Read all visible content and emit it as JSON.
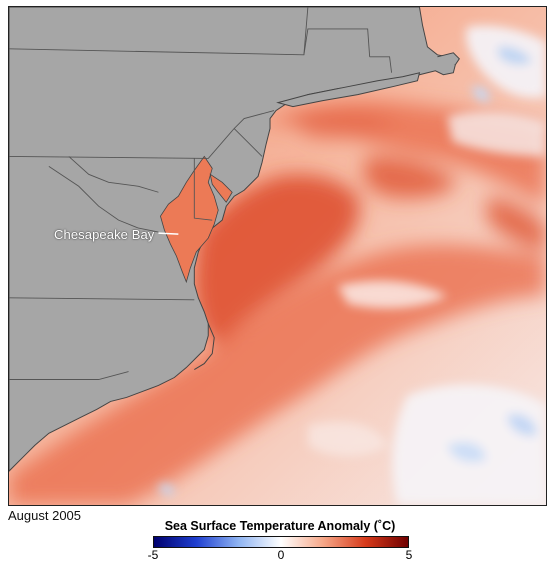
{
  "map": {
    "place_label": "Chesapeake Bay",
    "date": "August 2005",
    "land_color": "#a6a6a6",
    "border_color": "#555555",
    "legend": {
      "title": "Sea Surface Temperature Anomaly (˚C)",
      "min_label": "-5",
      "mid_label": "0",
      "max_label": "5",
      "range": [
        -5,
        5
      ],
      "colors": [
        "#00006e",
        "#1f3fd0",
        "#8fb4f2",
        "#ffffff",
        "#f6a788",
        "#d63a1b",
        "#700000"
      ]
    }
  }
}
